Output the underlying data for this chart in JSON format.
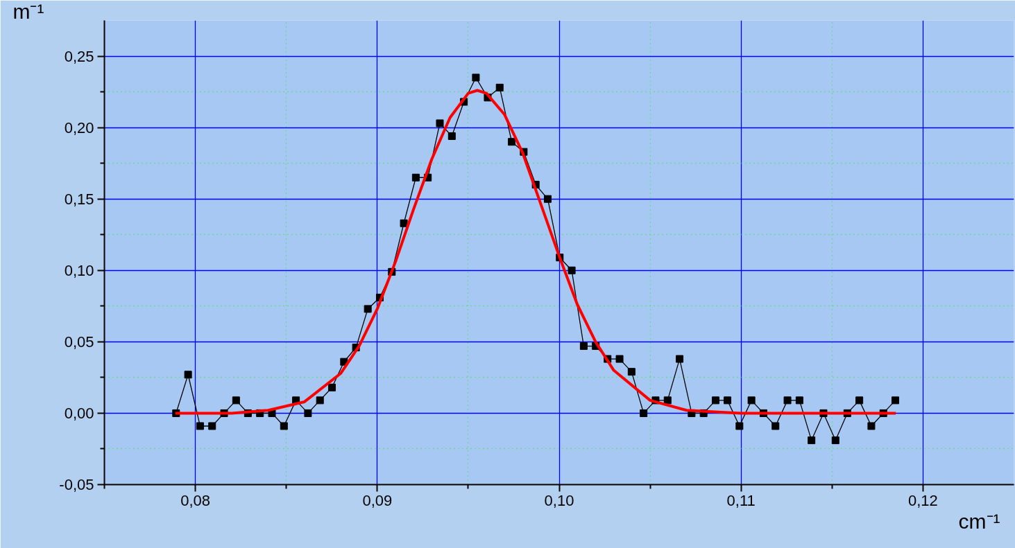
{
  "chart_data": {
    "type": "scatter",
    "xlabel": "cm⁻¹",
    "ylabel": "m⁻¹",
    "x": [
      0.07894,
      0.0796,
      0.08026,
      0.08092,
      0.08158,
      0.08224,
      0.08289,
      0.08355,
      0.08421,
      0.08487,
      0.08553,
      0.08619,
      0.08685,
      0.08751,
      0.08817,
      0.08883,
      0.08948,
      0.09014,
      0.0908,
      0.09146,
      0.09212,
      0.09278,
      0.09344,
      0.0941,
      0.09476,
      0.09542,
      0.09607,
      0.09673,
      0.09739,
      0.09805,
      0.09871,
      0.09937,
      0.10003,
      0.10069,
      0.10135,
      0.10201,
      0.10266,
      0.10332,
      0.10398,
      0.10464,
      0.1053,
      0.10596,
      0.10662,
      0.10728,
      0.10794,
      0.1086,
      0.10925,
      0.10991,
      0.11057,
      0.11123,
      0.11189,
      0.11255,
      0.11321,
      0.11387,
      0.11453,
      0.11519,
      0.11584,
      0.1165,
      0.11716,
      0.11782,
      0.11848
    ],
    "series": [
      {
        "marker": "square",
        "color": "#000000",
        "values": [
          0,
          0.027,
          -0.009,
          -0.009,
          0,
          0.009,
          0,
          0,
          0,
          -0.009,
          0.009,
          0,
          0.009,
          0.018,
          0.036,
          0.046,
          0.073,
          0.081,
          0.099,
          0.133,
          0.165,
          0.165,
          0.203,
          0.194,
          0.218,
          0.235,
          0.221,
          0.228,
          0.19,
          0.183,
          0.16,
          0.15,
          0.109,
          0.1,
          0.047,
          0.047,
          0.038,
          0.038,
          0.029,
          0,
          0.009,
          0.009,
          0.038,
          0,
          0,
          0.009,
          0.009,
          -0.009,
          0.009,
          0,
          -0.009,
          0.009,
          0.009,
          -0.019,
          0,
          -0.019,
          0,
          0.009,
          -0.009,
          0,
          0.009
        ]
      },
      {
        "type": "line",
        "marker": "none",
        "color": "#000000",
        "values": [
          0,
          0.027,
          -0.009,
          -0.009,
          0,
          0.009,
          0,
          0,
          0,
          -0.009,
          0.009,
          0,
          0.009,
          0.018,
          0.036,
          0.046,
          0.073,
          0.081,
          0.099,
          0.133,
          0.165,
          0.165,
          0.203,
          0.194,
          0.218,
          0.235,
          0.221,
          0.228,
          0.19,
          0.183,
          0.16,
          0.15,
          0.109,
          0.1,
          0.047,
          0.047,
          0.038,
          0.038,
          0.029,
          0,
          0.009,
          0.009,
          0.038,
          0,
          0,
          0.009,
          0.009,
          -0.009,
          0.009,
          0,
          -0.009,
          0.009,
          0.009,
          -0.019,
          0,
          -0.019,
          0,
          0.009,
          -0.009,
          0,
          0.009
        ]
      },
      {
        "type": "line",
        "marker": "none",
        "color": "#ff0000",
        "x": [
          0.0789,
          0.082,
          0.084,
          0.086,
          0.088,
          0.089,
          0.09,
          0.091,
          0.092,
          0.093,
          0.094,
          0.095,
          0.0955,
          0.096,
          0.097,
          0.098,
          0.099,
          0.1,
          0.101,
          0.102,
          0.103,
          0.105,
          0.107,
          0.11,
          0.1185
        ],
        "values": [
          0,
          0,
          0.002,
          0.008,
          0.028,
          0.047,
          0.073,
          0.106,
          0.143,
          0.178,
          0.207,
          0.224,
          0.226,
          0.224,
          0.209,
          0.182,
          0.146,
          0.11,
          0.076,
          0.05,
          0.03,
          0.009,
          0.002,
          0,
          0
        ]
      }
    ],
    "xlim": [
      0.075,
      0.125
    ],
    "ylim": [
      -0.05,
      0.275
    ],
    "xticks": [
      {
        "value": 0.075,
        "label": null
      },
      {
        "value": 0.08,
        "label": "0,08"
      },
      {
        "value": 0.085,
        "label": null
      },
      {
        "value": 0.09,
        "label": "0,09"
      },
      {
        "value": 0.095,
        "label": null
      },
      {
        "value": 0.1,
        "label": "0,10"
      },
      {
        "value": 0.105,
        "label": null
      },
      {
        "value": 0.11,
        "label": "0,11"
      },
      {
        "value": 0.115,
        "label": null
      },
      {
        "value": 0.12,
        "label": "0,12"
      }
    ],
    "yticks": [
      {
        "value": -0.05,
        "label": "-0,05"
      },
      {
        "value": -0.025,
        "label": null
      },
      {
        "value": 0,
        "label": "0,00"
      },
      {
        "value": 0.025,
        "label": null
      },
      {
        "value": 0.05,
        "label": "0,05"
      },
      {
        "value": 0.075,
        "label": null
      },
      {
        "value": 0.1,
        "label": "0,10"
      },
      {
        "value": 0.125,
        "label": null
      },
      {
        "value": 0.15,
        "label": "0,15"
      },
      {
        "value": 0.175,
        "label": null
      },
      {
        "value": 0.2,
        "label": "0,20"
      },
      {
        "value": 0.225,
        "label": null
      },
      {
        "value": 0.25,
        "label": "0,25"
      }
    ],
    "grid": true
  }
}
